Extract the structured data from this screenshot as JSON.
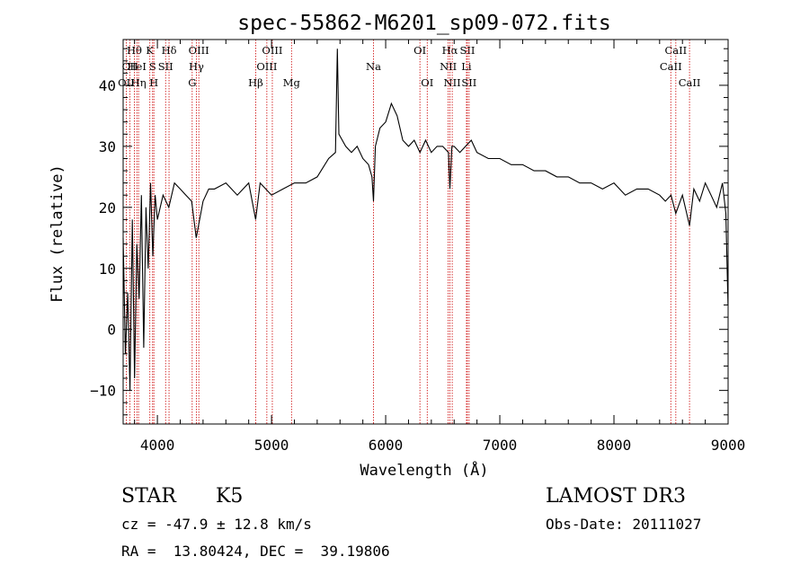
{
  "chart_data": {
    "type": "line",
    "title": "spec-55862-M6201_sp09-072.fits",
    "xlabel": "Wavelength (Å)",
    "ylabel": "Flux (relative)",
    "xlim": [
      3700,
      9000
    ],
    "ylim": [
      -15.5,
      47.5
    ],
    "xticks": [
      4000,
      5000,
      6000,
      7000,
      8000,
      9000
    ],
    "yticks": [
      -10,
      0,
      10,
      20,
      30,
      40
    ],
    "series": [
      {
        "name": "spectrum",
        "x": [
          3700,
          3720,
          3740,
          3760,
          3780,
          3800,
          3820,
          3840,
          3860,
          3880,
          3900,
          3920,
          3940,
          3960,
          3980,
          4000,
          4050,
          4100,
          4150,
          4200,
          4250,
          4300,
          4340,
          4400,
          4450,
          4500,
          4600,
          4700,
          4800,
          4861,
          4900,
          5000,
          5100,
          5200,
          5300,
          5400,
          5500,
          5560,
          5577,
          5590,
          5650,
          5700,
          5750,
          5800,
          5850,
          5880,
          5893,
          5910,
          5950,
          6000,
          6050,
          6100,
          6150,
          6200,
          6250,
          6300,
          6350,
          6400,
          6450,
          6500,
          6550,
          6563,
          6580,
          6600,
          6650,
          6700,
          6750,
          6800,
          6900,
          7000,
          7100,
          7200,
          7300,
          7400,
          7500,
          7600,
          7700,
          7800,
          7900,
          8000,
          8100,
          8200,
          8300,
          8400,
          8450,
          8500,
          8542,
          8600,
          8662,
          8700,
          8750,
          8800,
          8850,
          8900,
          8950,
          8980,
          8999
        ],
        "y": [
          15,
          -4,
          6,
          -10,
          18,
          -8,
          14,
          5,
          22,
          -3,
          20,
          10,
          24,
          12,
          22,
          18,
          22,
          20,
          24,
          23,
          22,
          21,
          15,
          21,
          23,
          23,
          24,
          22,
          24,
          18,
          24,
          22,
          23,
          24,
          24,
          25,
          28,
          29,
          46,
          32,
          30,
          29,
          30,
          28,
          27,
          25,
          21,
          30,
          33,
          34,
          37,
          35,
          31,
          30,
          31,
          29,
          31,
          29,
          30,
          30,
          29,
          23,
          30,
          30,
          29,
          30,
          31,
          29,
          28,
          28,
          27,
          27,
          26,
          26,
          25,
          25,
          24,
          24,
          23,
          24,
          22,
          23,
          23,
          22,
          21,
          22,
          19,
          22,
          17,
          23,
          21,
          24,
          22,
          20,
          24,
          19,
          4
        ],
        "color": "#000000"
      }
    ],
    "lines": [
      {
        "label": "Hθ",
        "x": 3798,
        "row": 0
      },
      {
        "label": "CII",
        "x": 3760,
        "row": 1
      },
      {
        "label": "OII",
        "x": 3727,
        "row": 2
      },
      {
        "label": "HeI",
        "x": 3820,
        "row": 1
      },
      {
        "label": "Hη",
        "x": 3835,
        "row": 2
      },
      {
        "label": "K",
        "x": 3934,
        "row": 0
      },
      {
        "label": "S",
        "x": 3958,
        "row": 1
      },
      {
        "label": "H",
        "x": 3969,
        "row": 2
      },
      {
        "label": "Hδ",
        "x": 4102,
        "row": 0
      },
      {
        "label": "SII",
        "x": 4072,
        "row": 1
      },
      {
        "label": "OIII",
        "x": 4363,
        "row": 0
      },
      {
        "label": "Hγ",
        "x": 4341,
        "row": 1
      },
      {
        "label": "G",
        "x": 4305,
        "row": 2
      },
      {
        "label": "Hβ",
        "x": 4861,
        "row": 2
      },
      {
        "label": "OIII",
        "x": 5007,
        "row": 0
      },
      {
        "label": "OIII",
        "x": 4959,
        "row": 1
      },
      {
        "label": "Mg",
        "x": 5175,
        "row": 2
      },
      {
        "label": "Na",
        "x": 5893,
        "row": 1
      },
      {
        "label": "OI",
        "x": 6300,
        "row": 0
      },
      {
        "label": "OI",
        "x": 6364,
        "row": 2
      },
      {
        "label": "Hα",
        "x": 6563,
        "row": 0
      },
      {
        "label": "NII",
        "x": 6548,
        "row": 1
      },
      {
        "label": "NII",
        "x": 6583,
        "row": 2
      },
      {
        "label": "SII",
        "x": 6716,
        "row": 0
      },
      {
        "label": "Li",
        "x": 6708,
        "row": 1
      },
      {
        "label": "SII",
        "x": 6731,
        "row": 2
      },
      {
        "label": "CaII",
        "x": 8542,
        "row": 0
      },
      {
        "label": "CaII",
        "x": 8498,
        "row": 1
      },
      {
        "label": "CaII",
        "x": 8662,
        "row": 2
      }
    ],
    "line_color": "#cc0000"
  },
  "info": {
    "object_class": "STAR",
    "subclass": "K5",
    "survey": "LAMOST DR3",
    "cz": "cz = -47.9 ± 12.8 km/s",
    "obs_date": "Obs-Date: 20111027",
    "coords": "RA =  13.80424, DEC =  39.19806"
  }
}
